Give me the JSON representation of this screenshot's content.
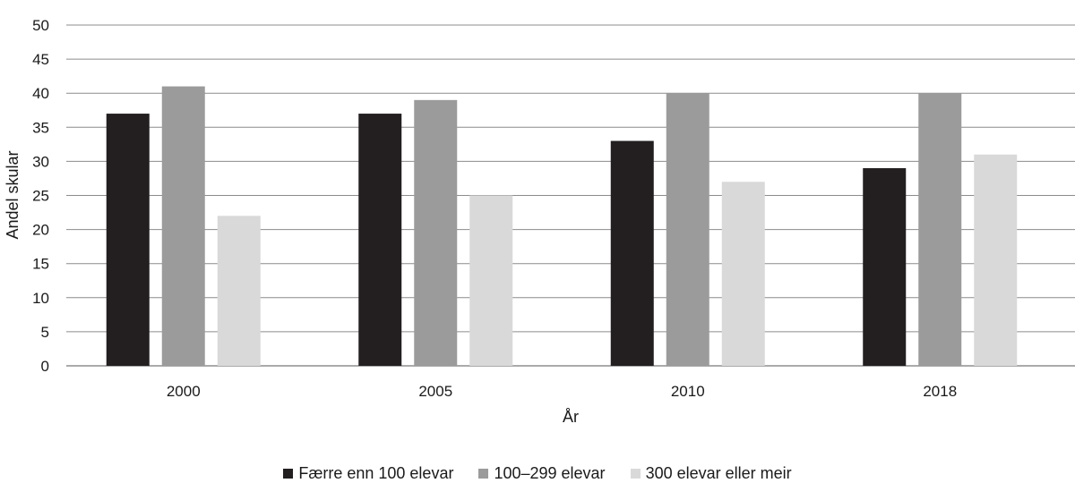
{
  "chart_data": {
    "type": "bar",
    "categories": [
      "2000",
      "2005",
      "2010",
      "2018"
    ],
    "series": [
      {
        "name": "Færre enn 100 elevar",
        "color": "#231f20",
        "values": [
          37,
          37,
          33,
          29
        ]
      },
      {
        "name": "100–299 elevar",
        "color": "#9b9b9b",
        "values": [
          41,
          39,
          40,
          40
        ]
      },
      {
        "name": "300 elevar eller meir",
        "color": "#d9d9d9",
        "values": [
          22,
          25,
          27,
          31
        ]
      }
    ],
    "xlabel": "År",
    "ylabel": "Andel skular",
    "ylim": [
      0,
      50
    ],
    "yticks": [
      0,
      5,
      10,
      15,
      20,
      25,
      30,
      35,
      40,
      45,
      50
    ],
    "grid": true,
    "legend_position": "bottom"
  }
}
